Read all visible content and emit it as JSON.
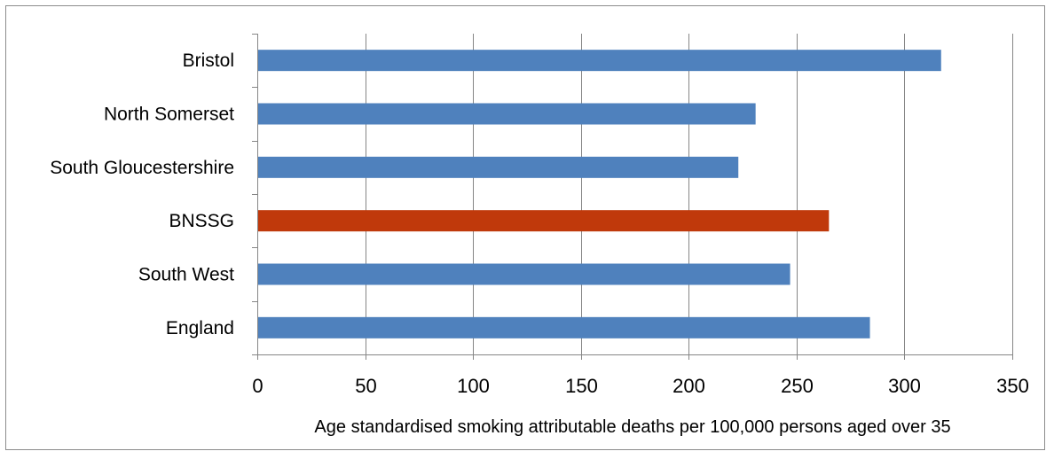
{
  "chart_data": {
    "type": "bar",
    "orientation": "horizontal",
    "categories": [
      "Bristol",
      "North Somerset",
      "South Gloucestershire",
      "BNSSG",
      "South West",
      "England"
    ],
    "values": [
      317,
      231,
      223,
      265,
      247,
      284
    ],
    "bar_colors": [
      "#4f81bd",
      "#4f81bd",
      "#4f81bd",
      "#c0390b",
      "#4f81bd",
      "#4f81bd"
    ],
    "xlabel": "Age standardised smoking attributable deaths per 100,000 persons aged over 35",
    "ylabel": "",
    "xlim": [
      0,
      350
    ],
    "xticks": [
      0,
      50,
      100,
      150,
      200,
      250,
      300,
      350
    ],
    "grid": "vertical",
    "legend": "none"
  }
}
